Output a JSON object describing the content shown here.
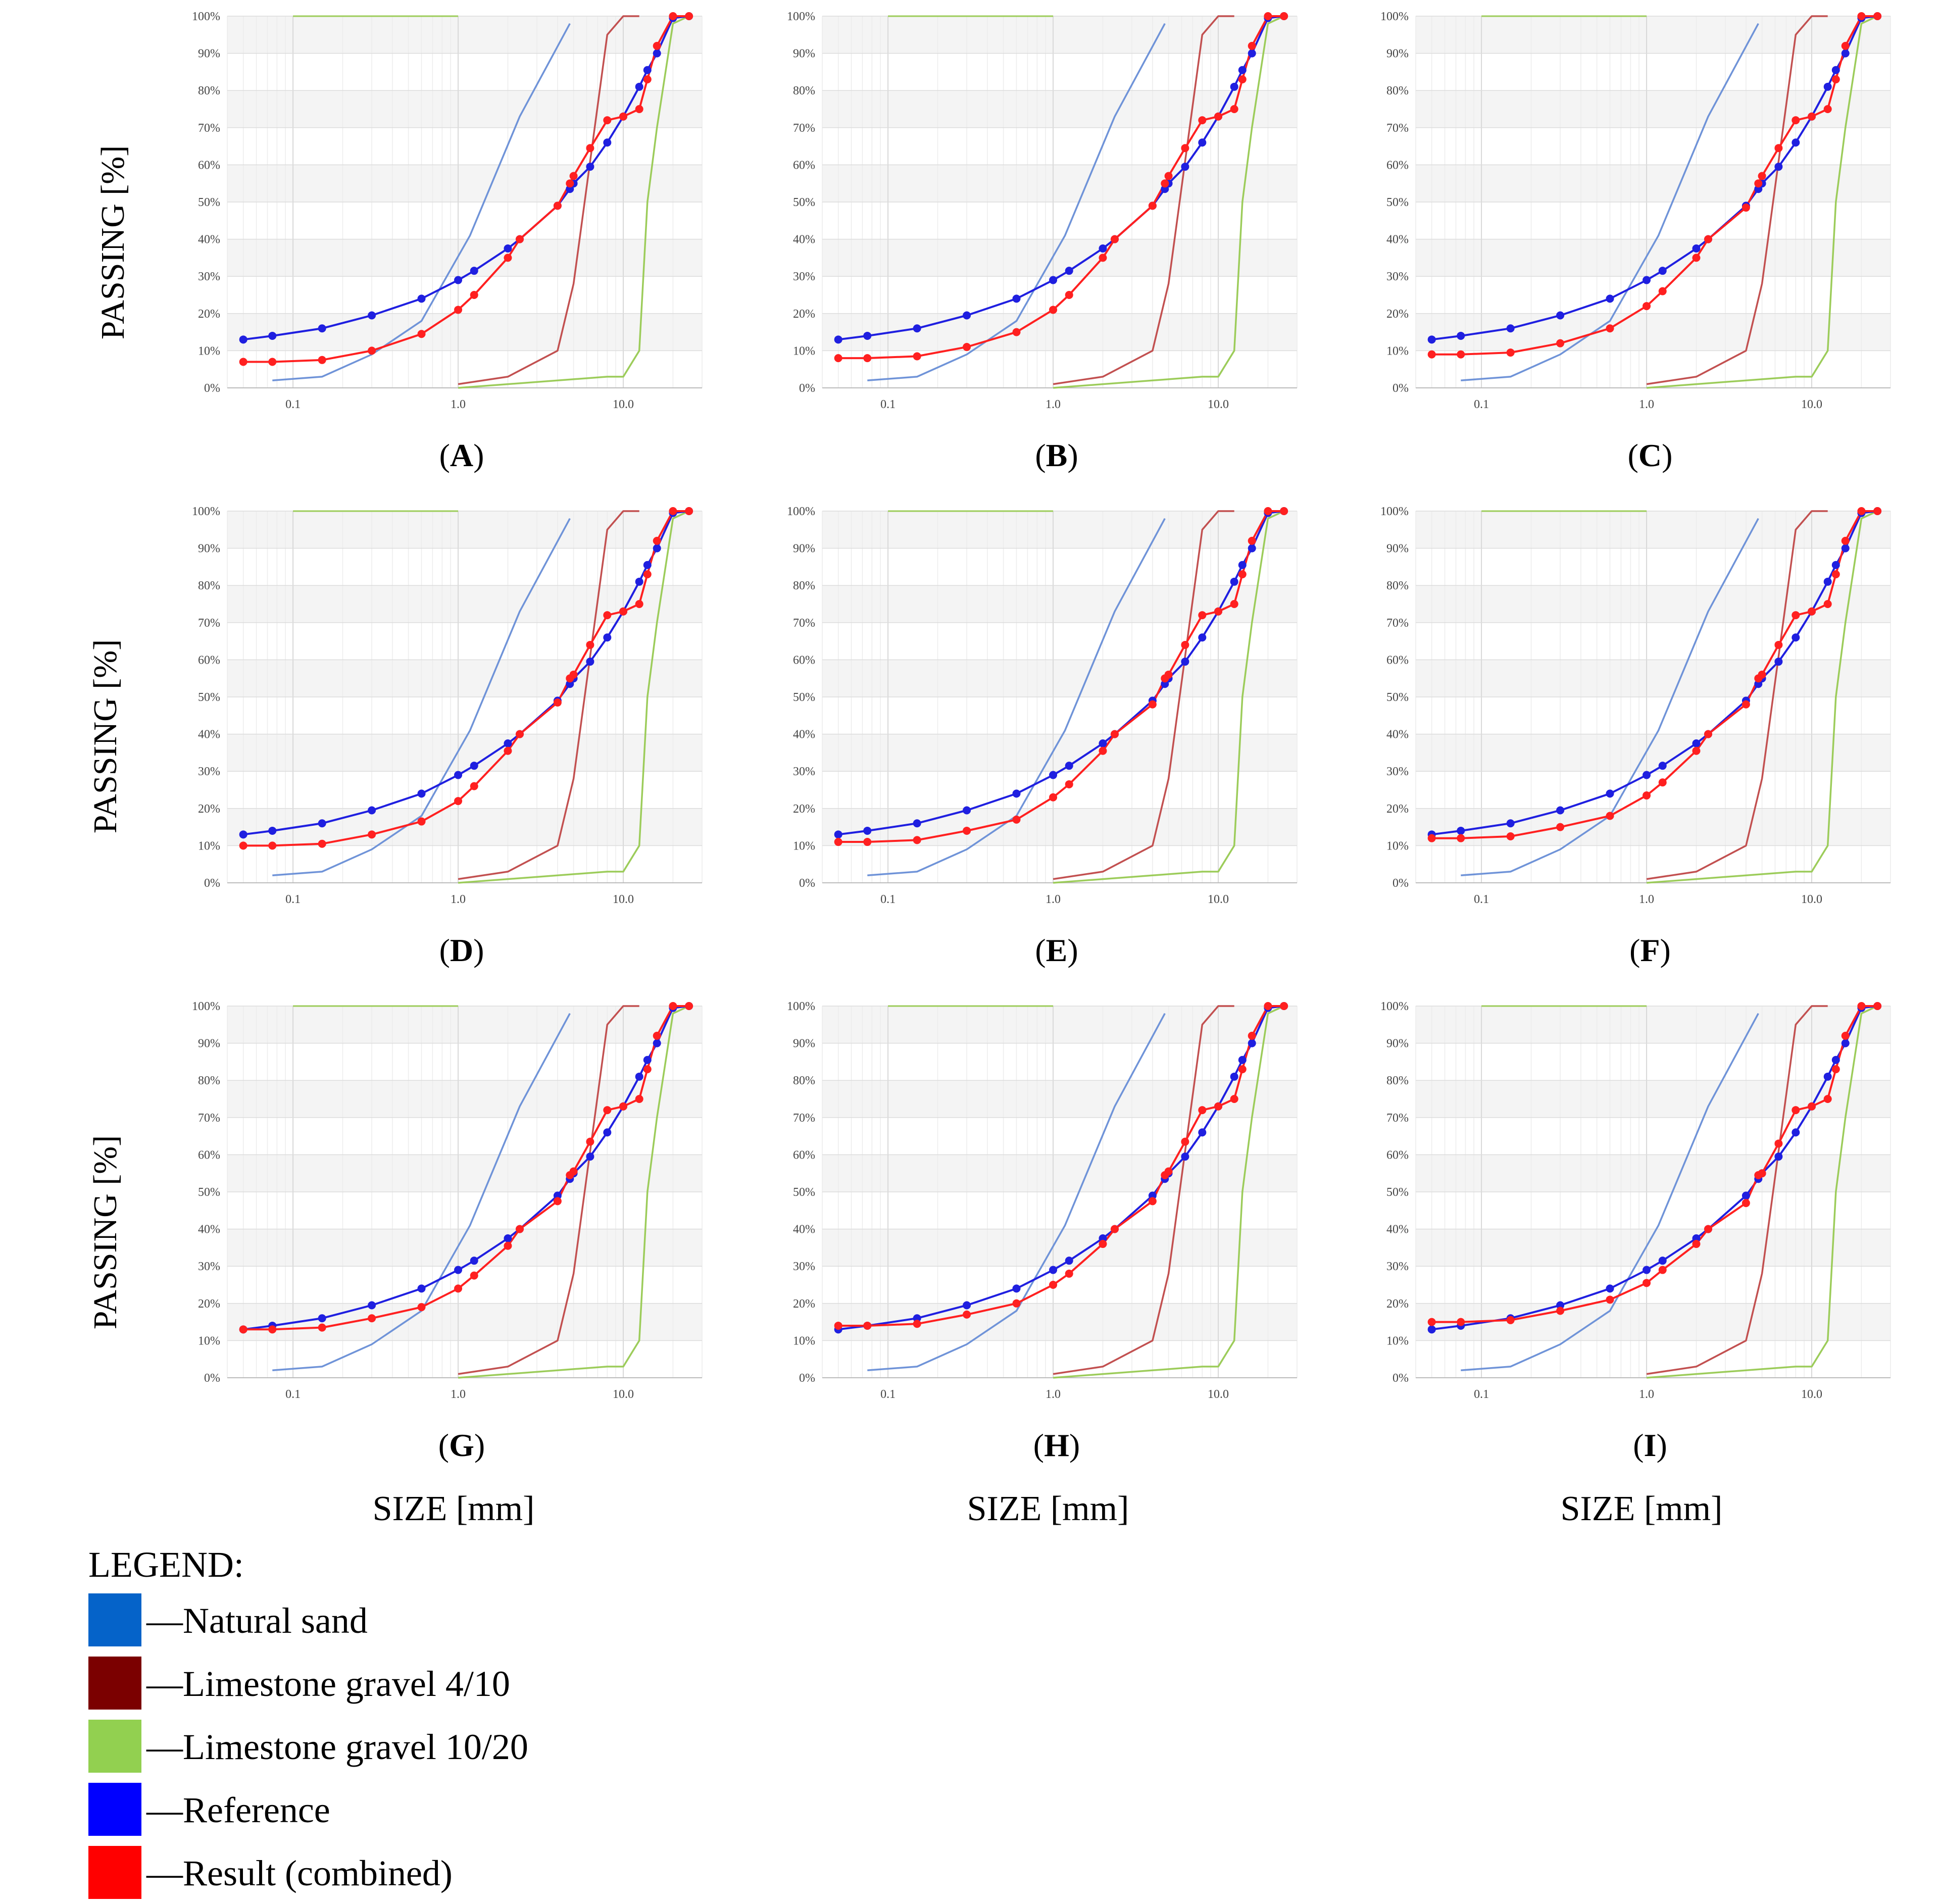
{
  "figure": {
    "y_axis_label": "PASSING [%]",
    "x_axis_label": "SIZE [mm]",
    "legend_title": "LEGEND:",
    "legend": [
      {
        "name": "Natural sand",
        "color": "#0563c9"
      },
      {
        "name": "Limestone gravel 4/10",
        "color": "#7b0000"
      },
      {
        "name": "Limestone gravel 10/20",
        "color": "#92d050"
      },
      {
        "name": "Reference",
        "color": "#0000ff"
      },
      {
        "name": "Result (combined)",
        "color": "#ff0000"
      }
    ],
    "legend_dash": "—"
  },
  "chart_data": {
    "type": "line",
    "x_scale": "log",
    "xlim": [
      0.04,
      30
    ],
    "ylim": [
      0,
      100
    ],
    "x_tick_labels": [
      "0.1",
      "1.0",
      "10.0"
    ],
    "x_tick_values": [
      0.1,
      1,
      10
    ],
    "y_tick_labels": [
      "0%",
      "10%",
      "20%",
      "30%",
      "40%",
      "50%",
      "60%",
      "70%",
      "80%",
      "90%",
      "100%"
    ],
    "y_tick_values": [
      0,
      10,
      20,
      30,
      40,
      50,
      60,
      70,
      80,
      90,
      100
    ],
    "series_colors": {
      "natural_sand": "#6f93d8",
      "gravel_4_10": "#c25050",
      "gravel_10_20": "#9ccc5a",
      "reference": "#1f1fe0",
      "result": "#ff2020"
    },
    "common_series": {
      "natural_sand": {
        "x": [
          0.075,
          0.15,
          0.3,
          0.6,
          1.18,
          2.36,
          4.75
        ],
        "y": [
          2,
          3,
          9,
          18,
          41,
          73,
          98
        ]
      },
      "gravel_4_10": {
        "x": [
          1.0,
          2.0,
          4.0,
          5.0,
          8.0,
          10.0,
          12.5
        ],
        "y": [
          1,
          3,
          10,
          28,
          95,
          100,
          100
        ]
      },
      "gravel_10_20": {
        "x": [
          1.0,
          8.0,
          10.0,
          12.5,
          14.0,
          16.0,
          20.0,
          25.0
        ],
        "y": [
          0,
          3,
          3,
          10,
          50,
          70,
          98,
          100
        ]
      },
      "gravel_10_20_top": {
        "x": [
          0.1,
          1.0
        ],
        "y": [
          100,
          100
        ]
      },
      "reference": {
        "x": [
          0.05,
          0.075,
          0.15,
          0.3,
          0.6,
          1.0,
          1.25,
          2.0,
          2.36,
          4.0,
          4.75,
          5.0,
          6.3,
          8.0,
          10.0,
          12.5,
          14.0,
          16.0,
          20.0,
          25.0
        ],
        "y": [
          13,
          14,
          16,
          19.5,
          24,
          29,
          31.5,
          37.5,
          40,
          49,
          53.5,
          55,
          59.5,
          66,
          73,
          81,
          85.5,
          90,
          99.5,
          100
        ]
      }
    },
    "result_x": [
      0.05,
      0.075,
      0.15,
      0.3,
      0.6,
      1.0,
      1.25,
      2.0,
      2.36,
      4.0,
      4.75,
      5.0,
      6.3,
      8.0,
      10.0,
      12.5,
      14.0,
      16.0,
      20.0,
      25.0
    ],
    "panels": [
      {
        "label": "A",
        "result_y": [
          7,
          7,
          7.5,
          10,
          14.5,
          21,
          25,
          35,
          40,
          49,
          55,
          57,
          64.5,
          72,
          73,
          75,
          83,
          92,
          100,
          100
        ]
      },
      {
        "label": "B",
        "result_y": [
          8,
          8,
          8.5,
          11,
          15,
          21,
          25,
          35,
          40,
          49,
          55,
          57,
          64.5,
          72,
          73,
          75,
          83,
          92,
          100,
          100
        ]
      },
      {
        "label": "C",
        "result_y": [
          9,
          9,
          9.5,
          12,
          16,
          22,
          26,
          35,
          40,
          48.5,
          55,
          57,
          64.5,
          72,
          73,
          75,
          83,
          92,
          100,
          100
        ]
      },
      {
        "label": "D",
        "result_y": [
          10,
          10,
          10.5,
          13,
          16.5,
          22,
          26,
          35.5,
          40,
          48.5,
          55,
          56,
          64,
          72,
          73,
          75,
          83,
          92,
          100,
          100
        ]
      },
      {
        "label": "E",
        "result_y": [
          11,
          11,
          11.5,
          14,
          17,
          23,
          26.5,
          35.5,
          40,
          48,
          55,
          56,
          64,
          72,
          73,
          75,
          83,
          92,
          100,
          100
        ]
      },
      {
        "label": "F",
        "result_y": [
          12,
          12,
          12.5,
          15,
          18,
          23.5,
          27,
          35.5,
          40,
          48,
          55,
          56,
          64,
          72,
          73,
          75,
          83,
          92,
          100,
          100
        ]
      },
      {
        "label": "G",
        "result_y": [
          13,
          13,
          13.5,
          16,
          19,
          24,
          27.5,
          35.5,
          40,
          47.5,
          54.5,
          55.5,
          63.5,
          72,
          73,
          75,
          83,
          92,
          100,
          100
        ]
      },
      {
        "label": "H",
        "result_y": [
          14,
          14,
          14.5,
          17,
          20,
          25,
          28,
          36,
          40,
          47.5,
          54.5,
          55.5,
          63.5,
          72,
          73,
          75,
          83,
          92,
          100,
          100
        ]
      },
      {
        "label": "I",
        "result_y": [
          15,
          15,
          15.5,
          18,
          21,
          25.5,
          29,
          36,
          40,
          47,
          54.5,
          55,
          63,
          72,
          73,
          75,
          83,
          92,
          100,
          100
        ]
      }
    ]
  }
}
